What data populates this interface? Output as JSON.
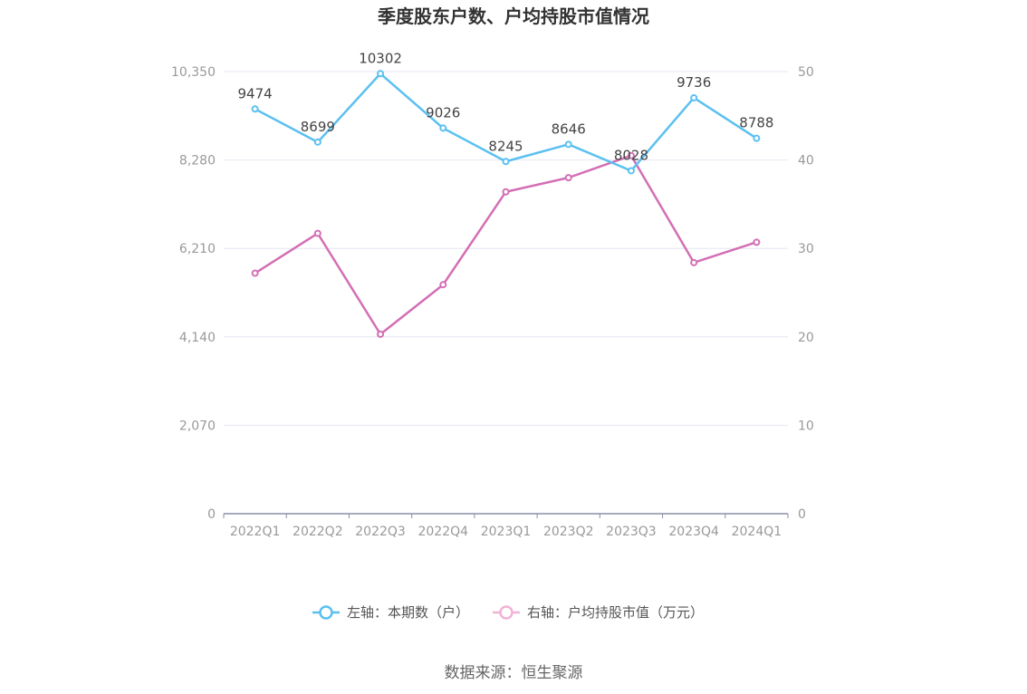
{
  "chart_data": {
    "type": "line",
    "title": "季度股东户数、户均持股市值情况",
    "categories": [
      "2022Q1",
      "2022Q2",
      "2022Q3",
      "2022Q4",
      "2023Q1",
      "2023Q2",
      "2023Q3",
      "2023Q4",
      "2024Q1"
    ],
    "left_axis": {
      "ticks": [
        "0",
        "2,070",
        "4,140",
        "6,210",
        "8,280",
        "10,350"
      ],
      "min": 0,
      "max": 10350
    },
    "right_axis": {
      "ticks": [
        "0",
        "10",
        "20",
        "30",
        "40",
        "50"
      ],
      "min": 0,
      "max": 50
    },
    "series": [
      {
        "name": "左轴：本期数（户）",
        "axis": "left",
        "color": "#5bc0f0",
        "values": [
          9474,
          8699,
          10302,
          9026,
          8245,
          8646,
          8028,
          9736,
          8788
        ],
        "labels": [
          "9474",
          "8699",
          "10302",
          "9026",
          "8245",
          "8646",
          "8028",
          "9736",
          "8788"
        ]
      },
      {
        "name": "右轴：户均持股市值（万元）",
        "axis": "right",
        "color": "#d36fb4",
        "values": [
          27.2,
          31.7,
          20.3,
          25.9,
          36.4,
          38.0,
          40.5,
          28.4,
          30.7
        ]
      }
    ],
    "grid": true,
    "legend_position": "bottom"
  },
  "source": "数据来源：恒生聚源"
}
